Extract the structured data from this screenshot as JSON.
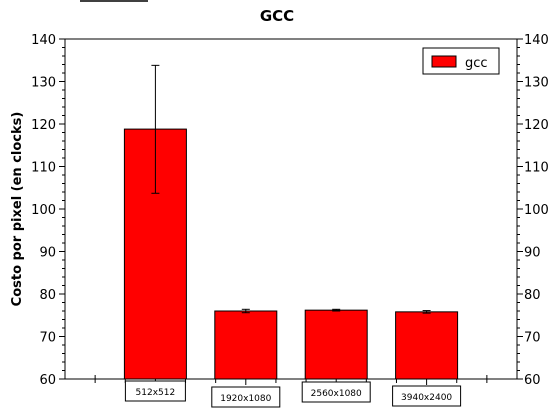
{
  "chart_data": {
    "type": "bar",
    "title": "GCC",
    "ylabel": "Costo por pixel (en clocks)",
    "xlabel": "",
    "categories": [
      "512x512",
      "1920x1080",
      "2560x1080",
      "3940x2400"
    ],
    "series": [
      {
        "name": "gcc",
        "color": "#ff0000",
        "values": [
          118.8,
          76.0,
          76.2,
          75.8
        ],
        "error_low": [
          103.7,
          75.6,
          76.0,
          75.5
        ],
        "error_high": [
          133.8,
          76.4,
          76.4,
          76.1
        ]
      }
    ],
    "ylim": [
      60,
      140
    ],
    "yticks": [
      60,
      70,
      80,
      90,
      100,
      110,
      120,
      130,
      140
    ],
    "grid": false,
    "legend": "top-right"
  }
}
